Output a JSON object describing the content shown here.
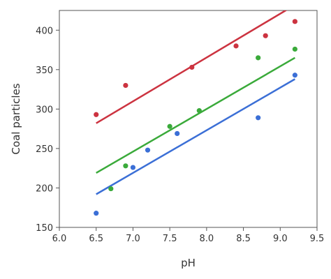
{
  "chart_data": {
    "type": "scatter",
    "xlabel": "pH",
    "ylabel": "Coal particles",
    "xlim": [
      6.0,
      9.5
    ],
    "ylim": [
      150,
      425
    ],
    "xticks": [
      "6.0",
      "6.5",
      "7.0",
      "7.5",
      "8.0",
      "8.5",
      "9.0",
      "9.5"
    ],
    "yticks": [
      "150",
      "200",
      "250",
      "300",
      "350",
      "400"
    ],
    "grid": false,
    "series": [
      {
        "color": "#cc3340",
        "points": [
          [
            6.5,
            293
          ],
          [
            6.9,
            330
          ],
          [
            7.8,
            353
          ],
          [
            8.4,
            380
          ],
          [
            8.8,
            393
          ],
          [
            9.2,
            411
          ]
        ],
        "fit": [
          [
            6.5,
            282
          ],
          [
            9.2,
            432
          ]
        ]
      },
      {
        "color": "#3aaa3a",
        "points": [
          [
            6.7,
            199
          ],
          [
            6.9,
            228
          ],
          [
            7.5,
            278
          ],
          [
            7.9,
            298
          ],
          [
            8.7,
            365
          ],
          [
            9.2,
            376
          ]
        ],
        "fit": [
          [
            6.5,
            219
          ],
          [
            9.2,
            365
          ]
        ]
      },
      {
        "color": "#3b6fd6",
        "points": [
          [
            6.5,
            168
          ],
          [
            7.0,
            226
          ],
          [
            7.2,
            248
          ],
          [
            7.6,
            269
          ],
          [
            8.7,
            289
          ],
          [
            9.2,
            343
          ]
        ],
        "fit": [
          [
            6.5,
            192
          ],
          [
            9.2,
            338
          ]
        ]
      }
    ]
  }
}
